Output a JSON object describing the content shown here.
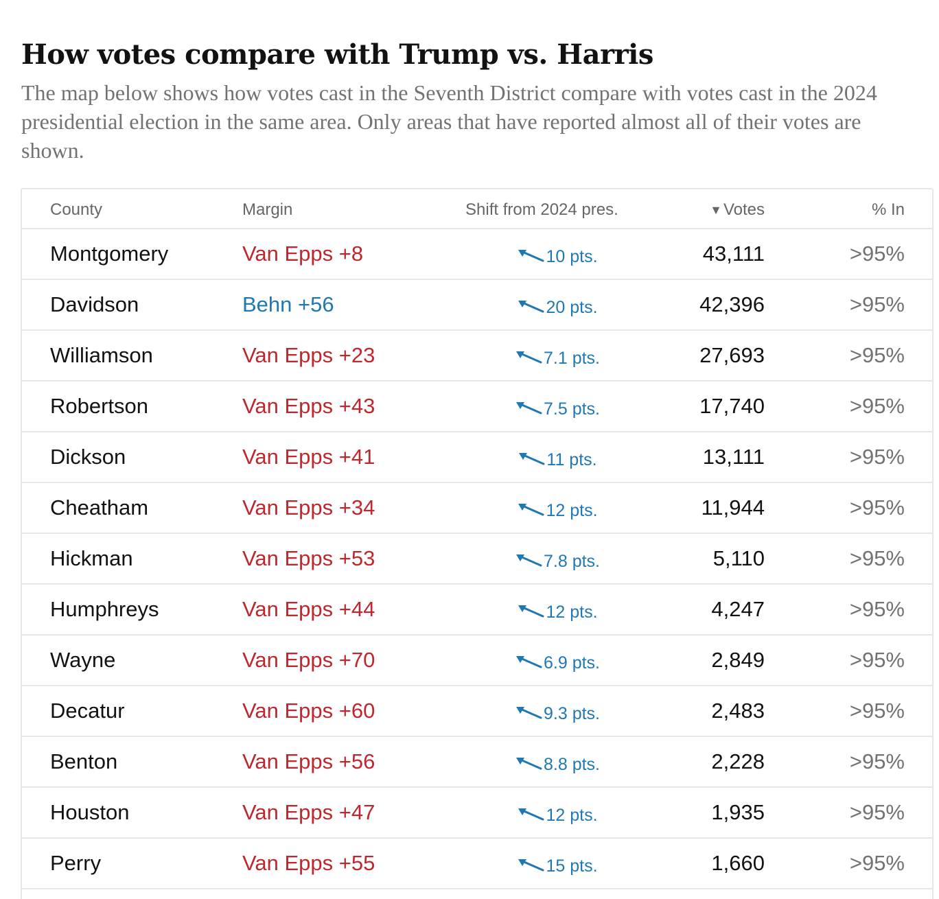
{
  "header": {
    "title": "How votes compare with Trump vs. Harris",
    "subtitle": "The map below shows how votes cast in the Seventh District compare with votes cast in the 2024 presidential election in the same area. Only areas that have reported almost all of their votes are shown."
  },
  "table": {
    "columns": {
      "county": "County",
      "margin": "Margin",
      "shift": "Shift from 2024 pres.",
      "votes": "Votes",
      "pct_in": "% In"
    },
    "sort_icon": "sort-descending-triangle-icon",
    "colors": {
      "republican": "#c0272d",
      "democrat": "#1f78b4"
    },
    "rows": [
      {
        "county": "Montgomery",
        "margin": "Van Epps +8",
        "party": "rep",
        "shift": "10 pts.",
        "votes": "43,111",
        "pct_in": ">95%"
      },
      {
        "county": "Davidson",
        "margin": "Behn +56",
        "party": "dem",
        "shift": "20 pts.",
        "votes": "42,396",
        "pct_in": ">95%"
      },
      {
        "county": "Williamson",
        "margin": "Van Epps +23",
        "party": "rep",
        "shift": "7.1 pts.",
        "votes": "27,693",
        "pct_in": ">95%"
      },
      {
        "county": "Robertson",
        "margin": "Van Epps +43",
        "party": "rep",
        "shift": "7.5 pts.",
        "votes": "17,740",
        "pct_in": ">95%"
      },
      {
        "county": "Dickson",
        "margin": "Van Epps +41",
        "party": "rep",
        "shift": "11 pts.",
        "votes": "13,111",
        "pct_in": ">95%"
      },
      {
        "county": "Cheatham",
        "margin": "Van Epps +34",
        "party": "rep",
        "shift": "12 pts.",
        "votes": "11,944",
        "pct_in": ">95%"
      },
      {
        "county": "Hickman",
        "margin": "Van Epps +53",
        "party": "rep",
        "shift": "7.8 pts.",
        "votes": "5,110",
        "pct_in": ">95%"
      },
      {
        "county": "Humphreys",
        "margin": "Van Epps +44",
        "party": "rep",
        "shift": "12 pts.",
        "votes": "4,247",
        "pct_in": ">95%"
      },
      {
        "county": "Wayne",
        "margin": "Van Epps +70",
        "party": "rep",
        "shift": "6.9 pts.",
        "votes": "2,849",
        "pct_in": ">95%"
      },
      {
        "county": "Decatur",
        "margin": "Van Epps +60",
        "party": "rep",
        "shift": "9.3 pts.",
        "votes": "2,483",
        "pct_in": ">95%"
      },
      {
        "county": "Benton",
        "margin": "Van Epps +56",
        "party": "rep",
        "shift": "8.8 pts.",
        "votes": "2,228",
        "pct_in": ">95%"
      },
      {
        "county": "Houston",
        "margin": "Van Epps +47",
        "party": "rep",
        "shift": "12 pts.",
        "votes": "1,935",
        "pct_in": ">95%"
      },
      {
        "county": "Perry",
        "margin": "Van Epps +55",
        "party": "rep",
        "shift": "15 pts.",
        "votes": "1,660",
        "pct_in": ">95%"
      }
    ]
  }
}
